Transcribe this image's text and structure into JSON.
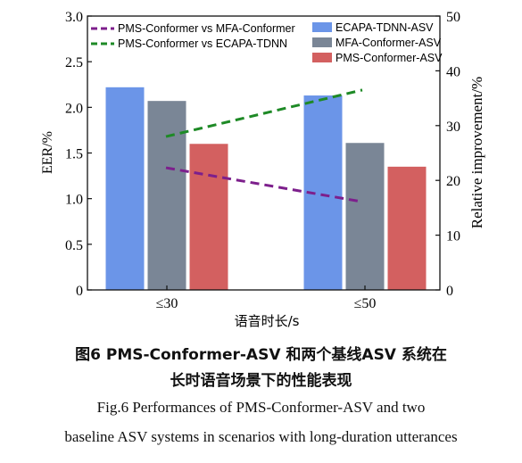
{
  "chart_data": {
    "type": "bar+line",
    "categories": [
      "≤30",
      "≤50"
    ],
    "xlabel": "语音时长/s",
    "ylabel": "EER/%",
    "ylabel_right": "Relative improvement/%",
    "ylim": [
      0,
      3.0
    ],
    "ylim_right": [
      0,
      50
    ],
    "yticks": [
      "0",
      "0.5",
      "1.0",
      "1.5",
      "2.0",
      "2.5",
      "3.0"
    ],
    "yticks_right": [
      "0",
      "10",
      "20",
      "30",
      "40",
      "50"
    ],
    "bar_series": [
      {
        "name": "ECAPA-TDNN-ASV",
        "values": [
          2.22,
          2.13
        ],
        "color": "#6b95e8"
      },
      {
        "name": "MFA-Conformer-ASV",
        "values": [
          2.07,
          1.61
        ],
        "color": "#7a8696"
      },
      {
        "name": "PMS-Conformer-ASV",
        "values": [
          1.6,
          1.35
        ],
        "color": "#d36060"
      }
    ],
    "line_series": [
      {
        "name": "PMS-Conformer  vs  MFA-Conformer",
        "values": [
          22.3,
          16.1
        ],
        "color": "#7d1f8c",
        "dash": "dashed"
      },
      {
        "name": "PMS-Conformer  vs  ECAPA-TDNN",
        "values": [
          28.0,
          36.5
        ],
        "color": "#1e8a26",
        "dash": "dashed"
      }
    ],
    "legend_placement": "top",
    "grid": false
  },
  "caption": {
    "cn_line1": "图6   PMS-Conformer-ASV 和两个基线ASV 系统在",
    "cn_line2": "长时语音场景下的性能表现",
    "en_line1": "Fig.6   Performances of PMS-Conformer-ASV and two",
    "en_line2": "baseline ASV systems in scenarios with long-duration utterances"
  }
}
